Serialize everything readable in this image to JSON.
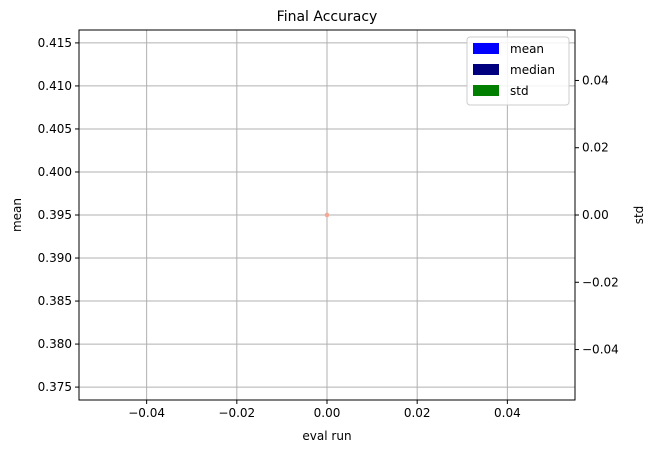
{
  "chart_data": {
    "type": "scatter",
    "title": "Final Accuracy",
    "xlabel": "eval run",
    "ylabel": "mean",
    "y2label": "std",
    "xlim": [
      -0.055,
      0.055
    ],
    "ylim": [
      0.3735,
      0.4165
    ],
    "y2lim": [
      -0.055,
      0.055
    ],
    "x_ticks": [
      -0.04,
      -0.02,
      0.0,
      0.02,
      0.04
    ],
    "x_tick_labels": [
      "−0.04",
      "−0.02",
      "0.00",
      "0.02",
      "0.04"
    ],
    "y_ticks": [
      0.375,
      0.38,
      0.385,
      0.39,
      0.395,
      0.4,
      0.405,
      0.41,
      0.415
    ],
    "y_tick_labels": [
      "0.375",
      "0.380",
      "0.385",
      "0.390",
      "0.395",
      "0.400",
      "0.405",
      "0.410",
      "0.415"
    ],
    "y2_ticks": [
      -0.04,
      -0.02,
      0.0,
      0.02,
      0.04
    ],
    "y2_tick_labels": [
      "−0.04",
      "−0.02",
      "0.00",
      "0.02",
      "0.04"
    ],
    "grid": true,
    "legend_position": "top-right",
    "series": [
      {
        "name": "mean",
        "color": "#0000ff",
        "x": [
          0
        ],
        "y": [
          0.395
        ],
        "axis": "left"
      },
      {
        "name": "median",
        "color": "#00007f",
        "x": [
          0
        ],
        "y": [
          0.395
        ],
        "axis": "left"
      },
      {
        "name": "std",
        "color": "#007f00",
        "x": [
          0
        ],
        "y": [
          0.0
        ],
        "axis": "right"
      }
    ],
    "marker_color": "#f2a792"
  }
}
